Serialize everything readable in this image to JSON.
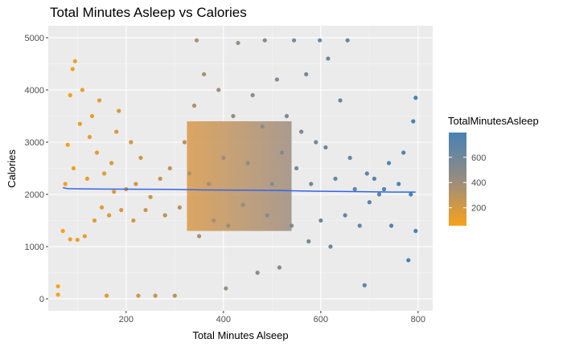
{
  "chart_data": {
    "type": "scatter",
    "title": "Total Minutes Asleep vs Calories",
    "xlabel": "Total Minutes Alseep",
    "ylabel": "Calories",
    "xlim": [
      40,
      830
    ],
    "ylim": [
      -230,
      5230
    ],
    "x_ticks": [
      200,
      400,
      600,
      800
    ],
    "y_ticks": [
      0,
      1000,
      2000,
      3000,
      4000,
      5000
    ],
    "grid": true,
    "legend": {
      "title": "TotalMinutesAsleep",
      "position": "right",
      "type": "colorbar",
      "ticks": [
        200,
        400,
        600
      ],
      "range": [
        58,
        796
      ],
      "color_low": "#F9A11B",
      "color_high": "#4682B4"
    },
    "trend_line": {
      "color": "#3366E6",
      "points": [
        [
          70,
          2130
        ],
        [
          80,
          2110
        ],
        [
          120,
          2105
        ],
        [
          200,
          2100
        ],
        [
          300,
          2095
        ],
        [
          365,
          2085
        ],
        [
          450,
          2080
        ],
        [
          515,
          2075
        ],
        [
          560,
          2065
        ],
        [
          600,
          2060
        ],
        [
          650,
          2055
        ],
        [
          700,
          2050
        ],
        [
          750,
          2045
        ],
        [
          795,
          2045
        ]
      ]
    },
    "series": [
      {
        "points": [
          [
            60,
            80
          ],
          [
            60,
            240
          ],
          [
            70,
            1300
          ],
          [
            75,
            2200
          ],
          [
            80,
            2950
          ],
          [
            85,
            3900
          ],
          [
            90,
            4400
          ],
          [
            95,
            4550
          ],
          [
            100,
            1130
          ],
          [
            85,
            1140
          ],
          [
            92,
            2500
          ],
          [
            105,
            3350
          ],
          [
            110,
            4000
          ],
          [
            115,
            1200
          ],
          [
            120,
            2300
          ],
          [
            125,
            3100
          ],
          [
            130,
            3500
          ],
          [
            135,
            1500
          ],
          [
            140,
            2800
          ],
          [
            145,
            3800
          ],
          [
            150,
            1750
          ],
          [
            155,
            2400
          ],
          [
            160,
            60
          ],
          [
            165,
            1600
          ],
          [
            170,
            2600
          ],
          [
            175,
            2050
          ],
          [
            180,
            3200
          ],
          [
            185,
            3600
          ],
          [
            190,
            1700
          ],
          [
            200,
            2100
          ],
          [
            210,
            3000
          ],
          [
            215,
            1500
          ],
          [
            220,
            2200
          ],
          [
            225,
            60
          ],
          [
            230,
            2700
          ],
          [
            240,
            1700
          ],
          [
            250,
            1950
          ],
          [
            260,
            60
          ],
          [
            270,
            2300
          ],
          [
            280,
            1600
          ],
          [
            290,
            2500
          ],
          [
            300,
            60
          ],
          [
            310,
            1750
          ],
          [
            320,
            3000
          ],
          [
            330,
            2400
          ],
          [
            340,
            3700
          ],
          [
            345,
            4950
          ],
          [
            350,
            1200
          ],
          [
            360,
            4300
          ],
          [
            370,
            2200
          ],
          [
            380,
            1500
          ],
          [
            390,
            4000
          ],
          [
            400,
            2700
          ],
          [
            405,
            200
          ],
          [
            410,
            1400
          ],
          [
            420,
            3500
          ],
          [
            430,
            4900
          ],
          [
            440,
            1800
          ],
          [
            450,
            2600
          ],
          [
            460,
            3900
          ],
          [
            470,
            500
          ],
          [
            480,
            3300
          ],
          [
            485,
            4950
          ],
          [
            490,
            1600
          ],
          [
            500,
            2200
          ],
          [
            510,
            4200
          ],
          [
            515,
            600
          ],
          [
            520,
            2800
          ],
          [
            530,
            3500
          ],
          [
            540,
            1400
          ],
          [
            545,
            4950
          ],
          [
            550,
            2500
          ],
          [
            560,
            3200
          ],
          [
            570,
            4300
          ],
          [
            575,
            1100
          ],
          [
            580,
            2200
          ],
          [
            590,
            3000
          ],
          [
            598,
            4950
          ],
          [
            600,
            1500
          ],
          [
            610,
            2900
          ],
          [
            615,
            4600
          ],
          [
            620,
            1000
          ],
          [
            630,
            2300
          ],
          [
            640,
            3800
          ],
          [
            650,
            1600
          ],
          [
            655,
            4950
          ],
          [
            660,
            2700
          ],
          [
            670,
            2100
          ],
          [
            680,
            1400
          ],
          [
            690,
            260
          ],
          [
            695,
            2400
          ],
          [
            700,
            1850
          ],
          [
            710,
            2300
          ],
          [
            720,
            2000
          ],
          [
            730,
            2100
          ],
          [
            740,
            2600
          ],
          [
            745,
            1400
          ],
          [
            760,
            2200
          ],
          [
            770,
            2800
          ],
          [
            780,
            740
          ],
          [
            785,
            2000
          ],
          [
            790,
            3400
          ],
          [
            795,
            3850
          ],
          [
            795,
            1300
          ]
        ]
      }
    ]
  }
}
